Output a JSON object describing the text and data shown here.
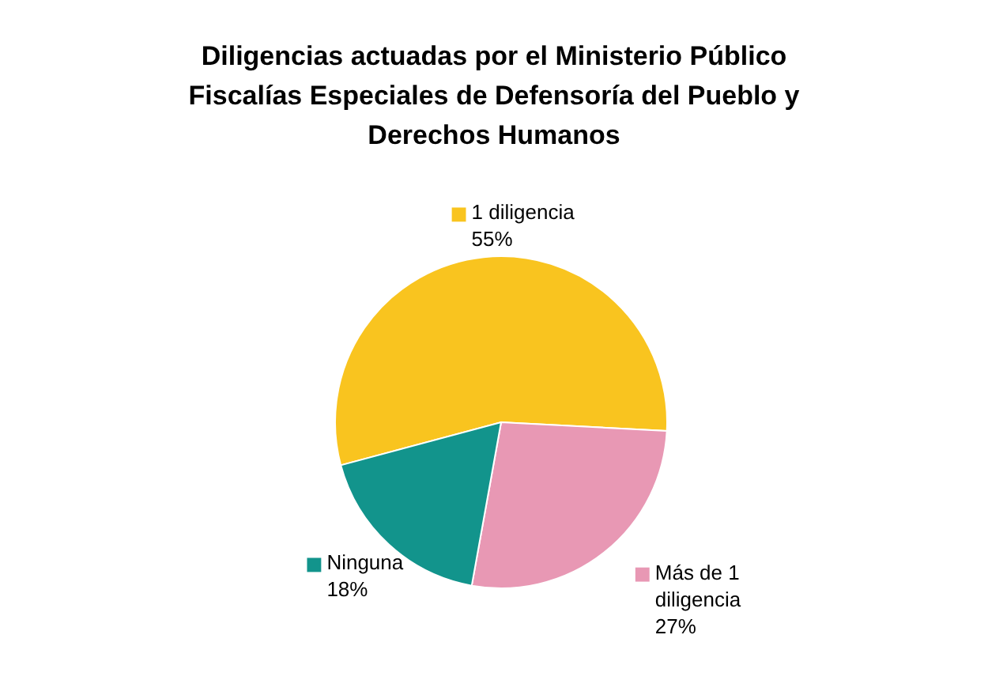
{
  "chart_data": {
    "type": "pie",
    "title": [
      "Diligencias actuadas por el Ministerio Público",
      "Fiscalías Especiales de Defensoría del Pueblo y",
      "Derechos Humanos"
    ],
    "categories": [
      "1 diligencia",
      "Más de 1 diligencia",
      "Ninguna"
    ],
    "values": [
      55,
      27,
      18
    ],
    "colors": [
      "#f9c41f",
      "#e898b4",
      "#12948c"
    ],
    "value_labels": [
      "55%",
      "27%",
      "18%"
    ],
    "legend": "top right"
  }
}
